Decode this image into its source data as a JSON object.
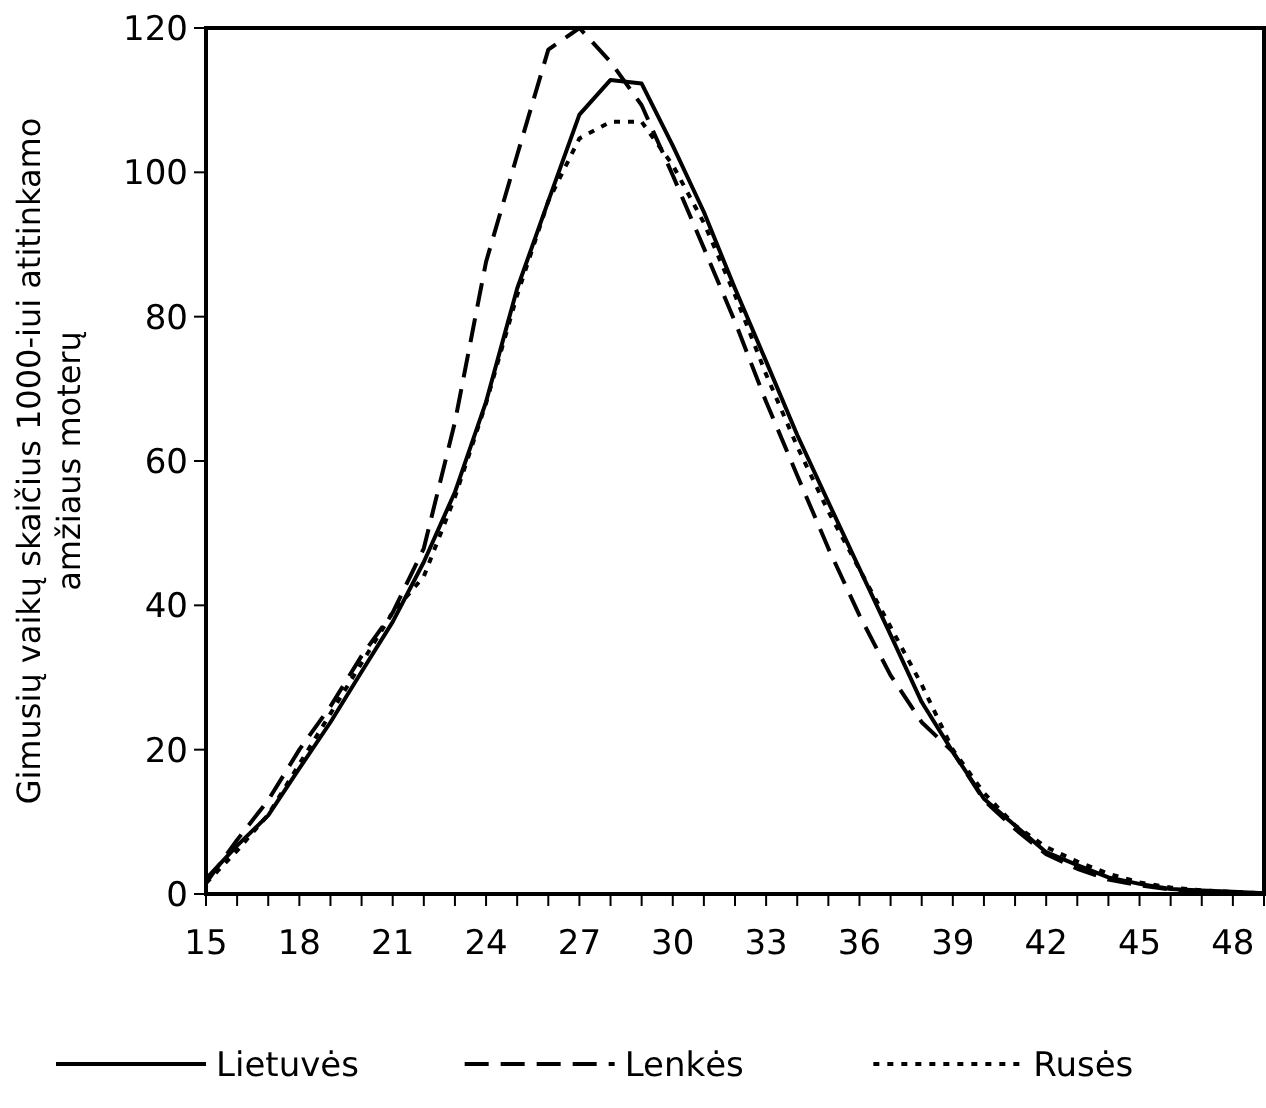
{
  "chart_data": {
    "type": "line",
    "ylabel": "Gimusių vaikų skaičius 1000-iui atitinkamo\namžiaus moterų",
    "x": [
      15,
      16,
      17,
      18,
      19,
      20,
      21,
      22,
      23,
      24,
      25,
      26,
      27,
      28,
      29,
      30,
      31,
      32,
      33,
      34,
      35,
      36,
      37,
      38,
      39,
      40,
      41,
      42,
      43,
      44,
      45,
      46,
      47,
      48,
      49
    ],
    "xlim": [
      15,
      49
    ],
    "ylim": [
      0,
      120
    ],
    "yticks": [
      0,
      20,
      40,
      60,
      80,
      100,
      120
    ],
    "xticks": [
      15,
      {
        "value": 16,
        "label": null
      },
      {
        "value": 17,
        "label": null
      },
      18,
      {
        "value": 19,
        "label": null
      },
      {
        "value": 20,
        "label": null
      },
      21,
      {
        "value": 22,
        "label": null
      },
      {
        "value": 23,
        "label": null
      },
      24,
      {
        "value": 25,
        "label": null
      },
      {
        "value": 26,
        "label": null
      },
      27,
      {
        "value": 28,
        "label": null
      },
      {
        "value": 29,
        "label": null
      },
      30,
      {
        "value": 31,
        "label": null
      },
      {
        "value": 32,
        "label": null
      },
      33,
      {
        "value": 34,
        "label": null
      },
      {
        "value": 35,
        "label": null
      },
      36,
      {
        "value": 37,
        "label": null
      },
      {
        "value": 38,
        "label": null
      },
      39,
      {
        "value": 40,
        "label": null
      },
      {
        "value": 41,
        "label": null
      },
      42,
      {
        "value": 43,
        "label": null
      },
      {
        "value": 44,
        "label": null
      },
      45,
      {
        "value": 46,
        "label": null
      },
      {
        "value": 47,
        "label": null
      },
      48,
      {
        "value": 49,
        "label": null
      }
    ],
    "grid": false,
    "legend": "bottom",
    "series": [
      {
        "name": "Lietuvės",
        "color": "#000000",
        "line_style": "solid",
        "values": [
          2.1,
          6.7,
          10.9,
          17.4,
          23.8,
          30.8,
          37.7,
          46,
          55.7,
          68.2,
          83.9,
          96,
          108,
          112.8,
          112.3,
          103.7,
          94.5,
          83.9,
          73.8,
          63.6,
          54.3,
          45.1,
          35.9,
          26.6,
          19.7,
          13.2,
          9.5,
          5.8,
          4,
          2.3,
          1.4,
          0.7,
          0.5,
          0.3,
          0.1
        ]
      },
      {
        "name": "Lenkės",
        "color": "#000000",
        "line_style": "dashed",
        "values": [
          1.5,
          7.5,
          13,
          20,
          26,
          33,
          39,
          47.9,
          65.4,
          87.6,
          102.4,
          117,
          120,
          115.3,
          109.3,
          99.6,
          89.5,
          79.3,
          68.2,
          58,
          47.9,
          38.6,
          30.3,
          23.8,
          19.7,
          13,
          9,
          5.5,
          3.5,
          2,
          1.2,
          0.6,
          0.3,
          0.2,
          0.1
        ]
      },
      {
        "name": "Rusės",
        "color": "#000000",
        "line_style": "dotted",
        "values": [
          1.5,
          6,
          11,
          18,
          25,
          32,
          39,
          44,
          55,
          68,
          83,
          96,
          104.7,
          107,
          107,
          101,
          93,
          83,
          72,
          62,
          53,
          45,
          37,
          29,
          20,
          14,
          9.5,
          6.5,
          4.5,
          2.8,
          1.6,
          0.9,
          0.5,
          0.3,
          0.1
        ]
      }
    ]
  }
}
